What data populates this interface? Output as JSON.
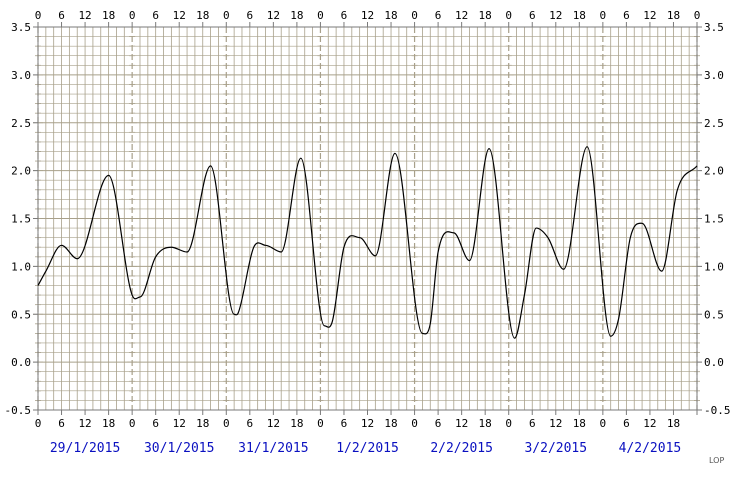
{
  "chart_data": {
    "type": "line",
    "title": "",
    "xlabel": "",
    "ylabel": "",
    "ylim": [
      -0.5,
      3.5
    ],
    "y_ticks": [
      "3.5",
      "3.0",
      "2.5",
      "2.0",
      "1.5",
      "1.0",
      "0.5",
      "0.0",
      "-0.5"
    ],
    "x_range_hours": [
      0,
      168
    ],
    "x_hour_ticks": [
      "0",
      "6",
      "12",
      "18"
    ],
    "days": [
      "29/1/2015",
      "30/1/2015",
      "31/1/2015",
      "1/2/2015",
      "2/2/2015",
      "3/2/2015",
      "4/2/2015"
    ],
    "grid": true,
    "colors": {
      "grid": "#a8a08a",
      "line": "#000000",
      "dates": "#0a10c0"
    },
    "series": [
      {
        "x": [
          0,
          2,
          6,
          10,
          18,
          24,
          26,
          30,
          34,
          38,
          44,
          50,
          51,
          55,
          58,
          62,
          67,
          73,
          75,
          78,
          82,
          86,
          91,
          98,
          100,
          102,
          106,
          110,
          115,
          121.5,
          124,
          127,
          130,
          134,
          140,
          146,
          148,
          151,
          154,
          159,
          163,
          168
        ],
        "y": [
          0.8,
          0.95,
          1.22,
          1.08,
          1.95,
          0.7,
          0.68,
          1.1,
          1.2,
          1.15,
          2.05,
          0.5,
          0.51,
          1.2,
          1.22,
          1.15,
          2.13,
          0.38,
          0.42,
          1.2,
          1.3,
          1.11,
          2.18,
          0.3,
          0.4,
          1.15,
          1.35,
          1.06,
          2.23,
          0.25,
          0.7,
          1.4,
          1.3,
          0.97,
          2.25,
          0.27,
          0.45,
          1.3,
          1.45,
          0.95,
          1.8,
          2.05
        ]
      }
    ]
  },
  "credit": "LOP"
}
